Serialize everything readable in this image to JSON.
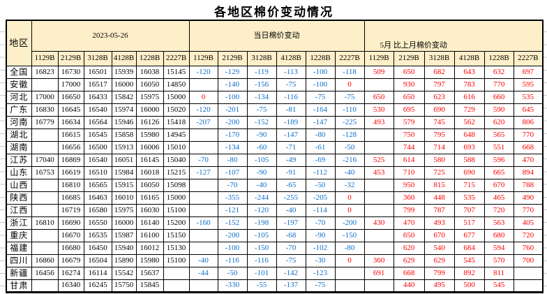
{
  "colors": {
    "header_fill": "#FCEFC9",
    "daily_change_text": "#0D6EC8",
    "monthly_change_text": "#FF0000",
    "zero_value_text": "#FF0000",
    "price_text": "#000000",
    "border": "#000000"
  },
  "chart_data": {
    "type": "table",
    "title": "各地区棉价变动情况",
    "region_label": "地区",
    "column_groups": [
      "2023-05-26",
      "当日棉价变动",
      "5月 比上月棉价变动"
    ],
    "grades": [
      "1129B",
      "2129B",
      "3128B",
      "4128B",
      "1228B",
      "2227B"
    ],
    "rows": [
      {
        "region": "全国",
        "prices": [
          "16823",
          "16730",
          "16501",
          "15939",
          "16038",
          "15145"
        ],
        "daily": [
          "-120",
          "-129",
          "-119",
          "-113",
          "-100",
          "-118"
        ],
        "monthly": [
          "509",
          "650",
          "682",
          "643",
          "632",
          "697"
        ]
      },
      {
        "region": "安徽",
        "prices": [
          "",
          "17000",
          "16517",
          "16000",
          "16050",
          "14850"
        ],
        "daily": [
          "",
          "-140",
          "-156",
          "-75",
          "-100",
          "0"
        ],
        "monthly": [
          "",
          "930",
          "797",
          "783",
          "770",
          "595"
        ]
      },
      {
        "region": "河北",
        "prices": [
          "17000",
          "16650",
          "16433",
          "15842",
          "15975",
          "15000"
        ],
        "daily": [
          "0",
          "-100",
          "-134",
          "-116",
          "-75",
          "-75"
        ],
        "monthly": [
          "650",
          "650",
          "623",
          "616",
          "660",
          "535"
        ]
      },
      {
        "region": "广东",
        "prices": [
          "16830",
          "16645",
          "16540",
          "15974",
          "16000",
          "15020"
        ],
        "daily": [
          "-120",
          "-201",
          "-75",
          "-81",
          "-164",
          "-110"
        ],
        "monthly": [
          "530",
          "695",
          "690",
          "729",
          "590",
          "645"
        ]
      },
      {
        "region": "河南",
        "prices": [
          "16779",
          "16634",
          "16564",
          "15946",
          "16126",
          "15418"
        ],
        "daily": [
          "-207",
          "-200",
          "-152",
          "-189",
          "-147",
          "-225"
        ],
        "monthly": [
          "493",
          "579",
          "745",
          "562",
          "620",
          "806"
        ]
      },
      {
        "region": "湖北",
        "prices": [
          "",
          "16615",
          "16545",
          "15858",
          "15980",
          "14945"
        ],
        "daily": [
          "",
          "-170",
          "-90",
          "-147",
          "-80",
          "-128"
        ],
        "monthly": [
          "",
          "750",
          "795",
          "648",
          "565",
          "770"
        ]
      },
      {
        "region": "湖南",
        "prices": [
          "",
          "16656",
          "16500",
          "15913",
          "16006",
          "15010"
        ],
        "daily": [
          "",
          "-134",
          "-60",
          "-71",
          "-61",
          "-50"
        ],
        "monthly": [
          "",
          "744",
          "714",
          "693",
          "551",
          "668"
        ]
      },
      {
        "region": "江苏",
        "prices": [
          "17040",
          "16869",
          "16540",
          "16051",
          "16145",
          "15040"
        ],
        "daily": [
          "-70",
          "-80",
          "-105",
          "-49",
          "-69",
          "-216"
        ],
        "monthly": [
          "525",
          "614",
          "580",
          "588",
          "596",
          "470"
        ]
      },
      {
        "region": "山东",
        "prices": [
          "16753",
          "16619",
          "16510",
          "15984",
          "16018",
          "15215"
        ],
        "daily": [
          "-127",
          "-107",
          "-90",
          "-91",
          "-112",
          "-40"
        ],
        "monthly": [
          "453",
          "710",
          "725",
          "690",
          "665",
          "894"
        ]
      },
      {
        "region": "山西",
        "prices": [
          "",
          "16810",
          "16565",
          "15915",
          "16050",
          "15098"
        ],
        "daily": [
          "",
          "-70",
          "-40",
          "-65",
          "-50",
          "-32"
        ],
        "monthly": [
          "",
          "950",
          "815",
          "715",
          "670",
          "788"
        ]
      },
      {
        "region": "陕西",
        "prices": [
          "",
          "16685",
          "16463",
          "16010",
          "16165",
          "15000"
        ],
        "daily": [
          "",
          "-355",
          "-244",
          "-255",
          "-205",
          "0"
        ],
        "monthly": [
          "",
          "360",
          "448",
          "535",
          "465",
          "490"
        ]
      },
      {
        "region": "江西",
        "prices": [
          "",
          "16719",
          "16580",
          "15975",
          "16030",
          "15100"
        ],
        "daily": [
          "",
          "-121",
          "-120",
          "-40",
          "-114",
          "0"
        ],
        "monthly": [
          "",
          "799",
          "787",
          "707",
          "720",
          "770"
        ]
      },
      {
        "region": "浙江",
        "prices": [
          "16810",
          "16690",
          "16550",
          "16000",
          "16140",
          "15200"
        ],
        "daily": [
          "-160",
          "-152",
          "-198",
          "-197",
          "-70",
          "-200"
        ],
        "monthly": [
          "430",
          "470",
          "493",
          "517",
          "563",
          "405"
        ]
      },
      {
        "region": "重庆",
        "prices": [
          "",
          "16670",
          "16535",
          "15987",
          "16100",
          "15150"
        ],
        "daily": [
          "",
          "-200",
          "-105",
          "-68",
          "-90",
          "-150"
        ],
        "monthly": [
          "",
          "650",
          "670",
          "677",
          "680",
          "720"
        ]
      },
      {
        "region": "福建",
        "prices": [
          "",
          "16680",
          "16450",
          "15940",
          "16012",
          "15130"
        ],
        "daily": [
          "",
          "-100",
          "-150",
          "-70",
          "-102",
          "-80"
        ],
        "monthly": [
          "",
          "620",
          "540",
          "684",
          "594",
          "760"
        ]
      },
      {
        "region": "四川",
        "prices": [
          "16860",
          "16679",
          "16504",
          "15890",
          "15980",
          "15100"
        ],
        "daily": [
          "-40",
          "-116",
          "-116",
          "-75",
          "-30",
          "0"
        ],
        "monthly": [
          "360",
          "629",
          "629",
          "545",
          "570",
          "700"
        ]
      },
      {
        "region": "新疆",
        "prices": [
          "16456",
          "16274",
          "16114",
          "15542",
          "15637",
          ""
        ],
        "daily": [
          "-44",
          "-50",
          "-101",
          "-142",
          "-123",
          ""
        ],
        "monthly": [
          "691",
          "668",
          "799",
          "892",
          "811",
          ""
        ]
      },
      {
        "region": "甘肃",
        "prices": [
          "",
          "16340",
          "16245",
          "15750",
          "15845",
          ""
        ],
        "daily": [
          "",
          "-330",
          "-55",
          "-137",
          "-75",
          ""
        ],
        "monthly": [
          "",
          "440",
          "495",
          "500",
          "545",
          ""
        ]
      }
    ]
  }
}
